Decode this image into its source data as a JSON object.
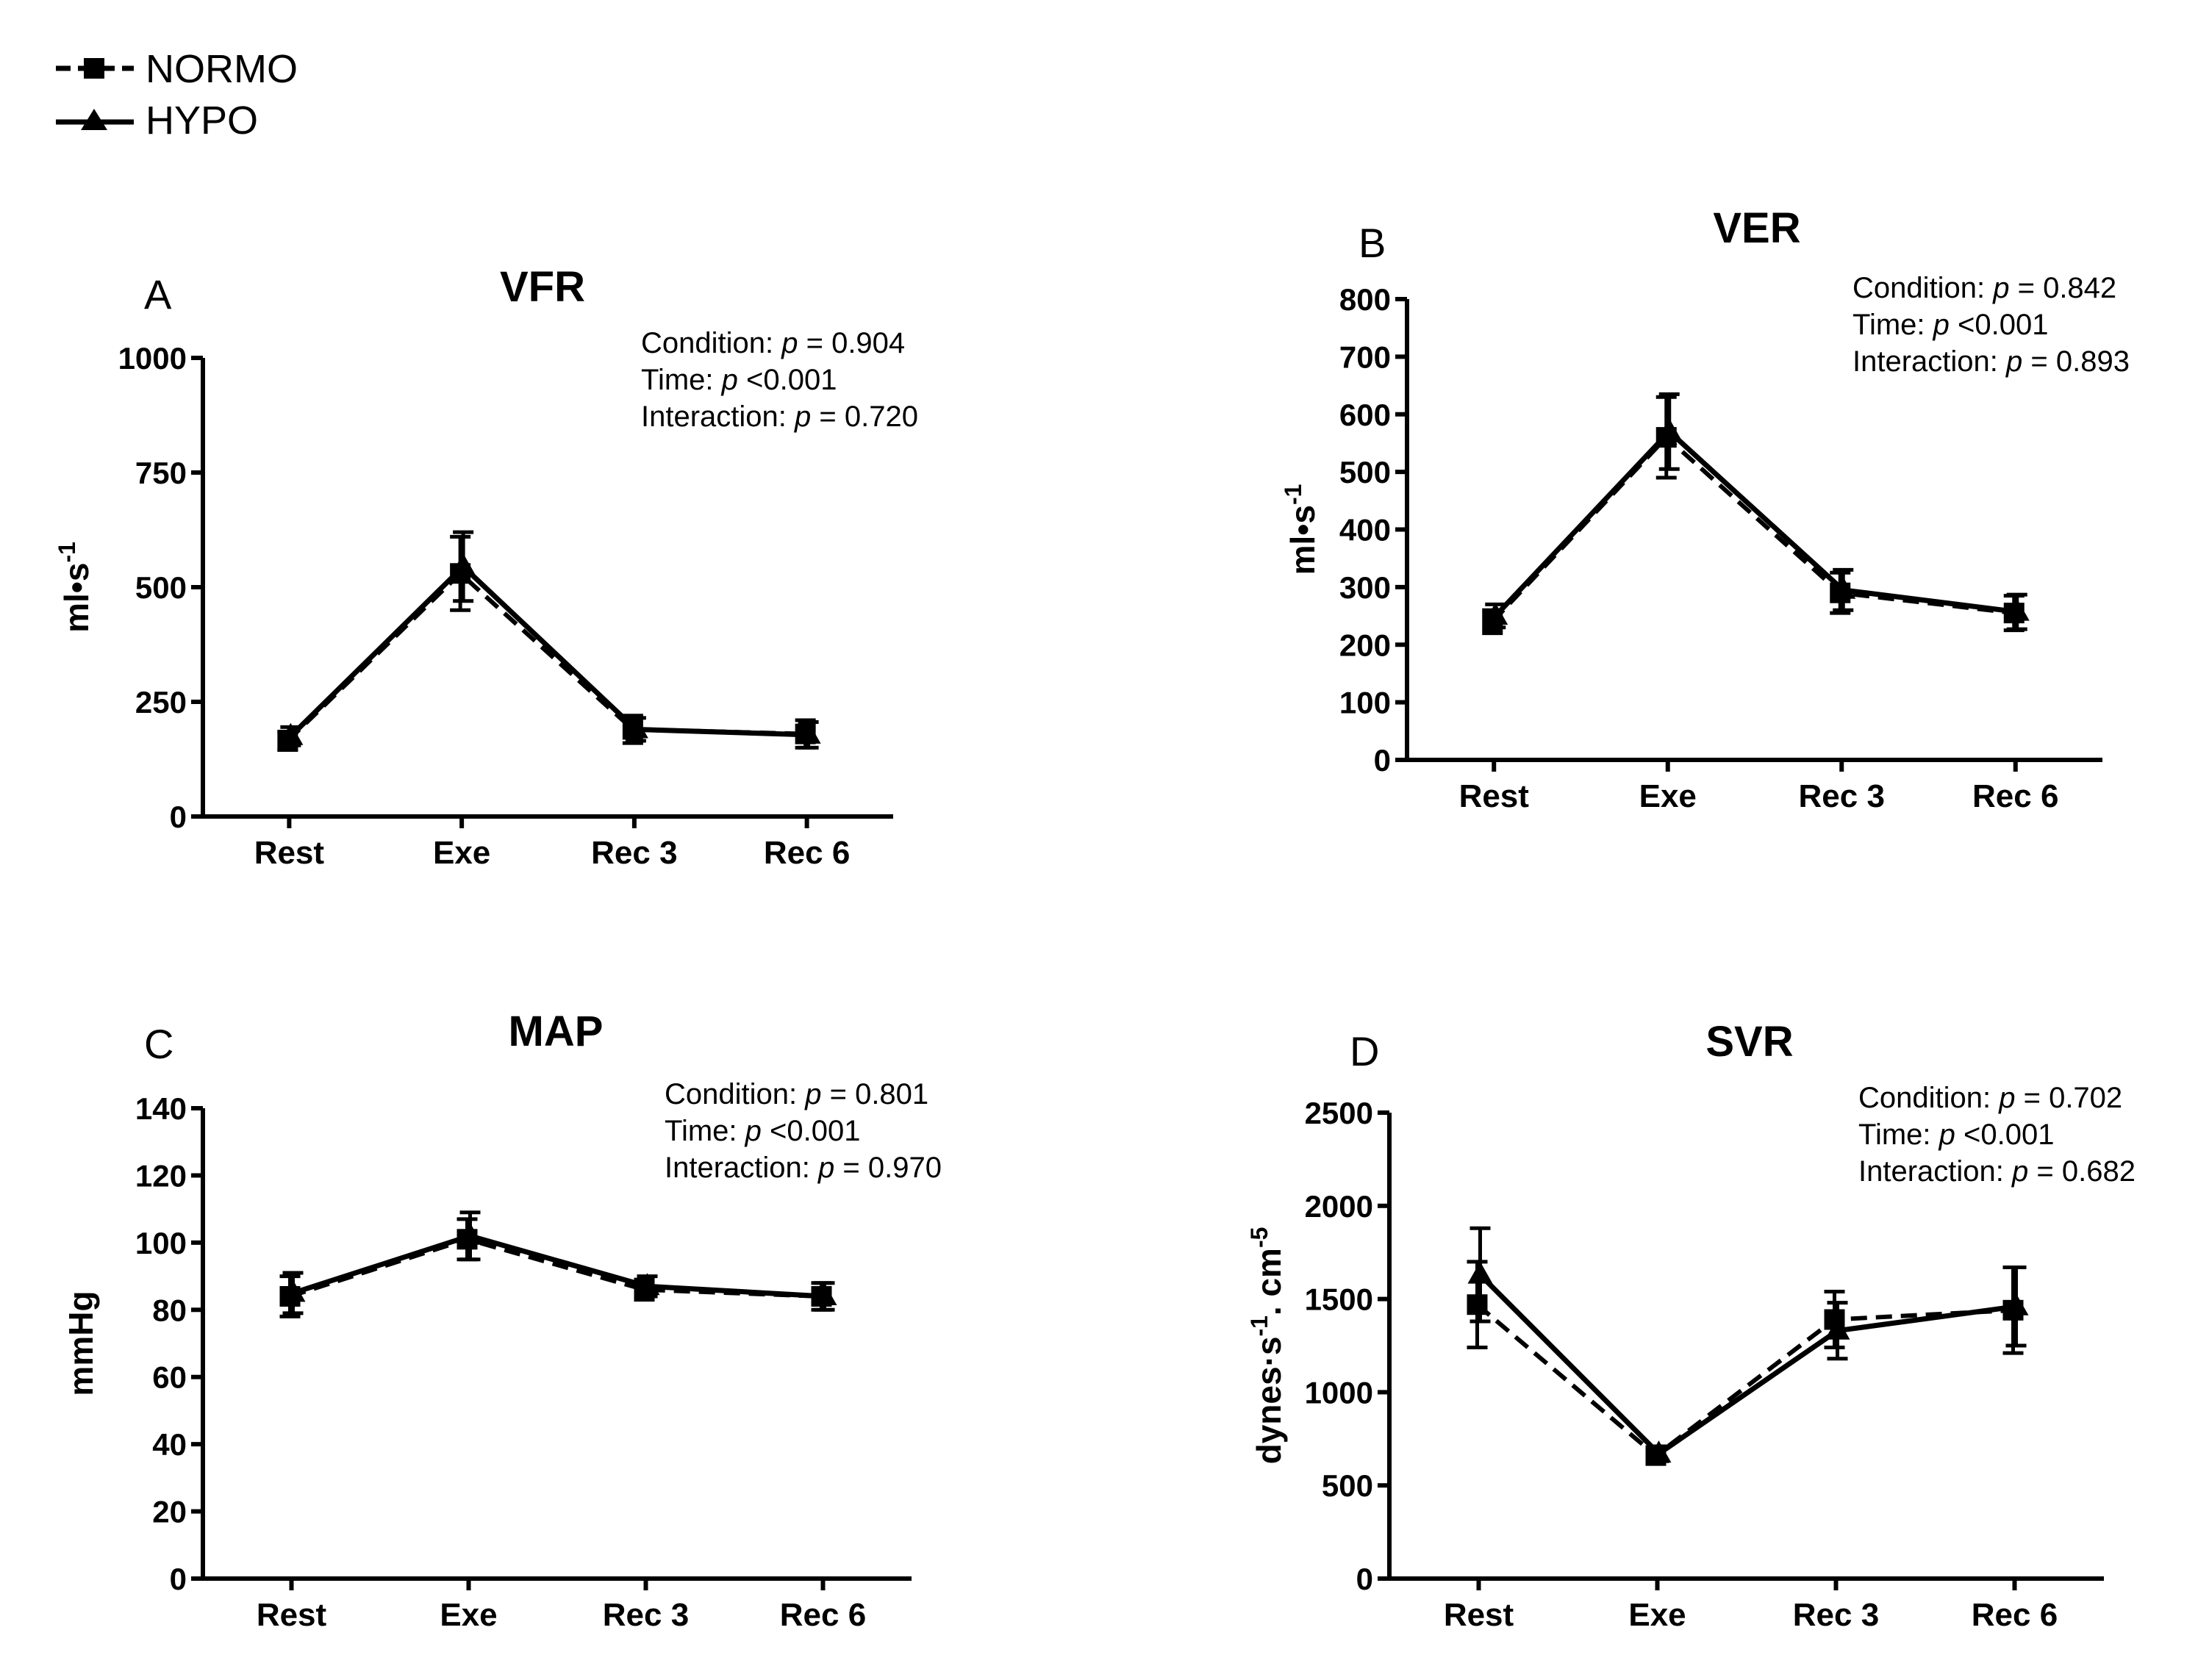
{
  "legend": {
    "items": [
      {
        "label": "NORMO",
        "line_style": "dashed",
        "marker": "square"
      },
      {
        "label": "HYPO",
        "line_style": "solid",
        "marker": "triangle"
      }
    ]
  },
  "chart_data": [
    {
      "panel": "A",
      "type": "line",
      "title": "VFR",
      "ylabel": "ml•s",
      "ylabel_sup": "-1",
      "categories": [
        "Rest",
        "Exe",
        "Rec 3",
        "Rec 6"
      ],
      "ylim": [
        0,
        1000
      ],
      "yticks": [
        0,
        250,
        500,
        750,
        1000
      ],
      "series": [
        {
          "name": "NORMO",
          "values": [
            165,
            530,
            190,
            180
          ],
          "errors": [
            20,
            80,
            30,
            30
          ]
        },
        {
          "name": "HYPO",
          "values": [
            175,
            545,
            190,
            178
          ],
          "errors": [
            20,
            75,
            25,
            28
          ]
        }
      ],
      "stats": [
        {
          "label": "Condition:",
          "p": "p",
          "rest": " = 0.904"
        },
        {
          "label": "Time:",
          "p": "p",
          "rest": " <0.001"
        },
        {
          "label": "Interaction:",
          "p": "p",
          "rest": " = 0.720"
        }
      ]
    },
    {
      "panel": "B",
      "type": "line",
      "title": "VER",
      "ylabel": "ml•s",
      "ylabel_sup": "-1",
      "categories": [
        "Rest",
        "Exe",
        "Rec 3",
        "Rec 6"
      ],
      "ylim": [
        0,
        800
      ],
      "yticks": [
        0,
        100,
        200,
        300,
        400,
        500,
        600,
        700,
        800
      ],
      "series": [
        {
          "name": "NORMO",
          "values": [
            240,
            560,
            290,
            255
          ],
          "errors": [
            20,
            70,
            35,
            30
          ]
        },
        {
          "name": "HYPO",
          "values": [
            250,
            570,
            295,
            257
          ],
          "errors": [
            20,
            65,
            35,
            30
          ]
        }
      ],
      "stats": [
        {
          "label": "Condition:",
          "p": "p",
          "rest": " = 0.842"
        },
        {
          "label": "Time:",
          "p": "p",
          "rest": " <0.001"
        },
        {
          "label": "Interaction:",
          "p": "p",
          "rest": " = 0.893"
        }
      ]
    },
    {
      "panel": "C",
      "type": "line",
      "title": "MAP",
      "ylabel": "mmHg",
      "ylabel_sup": "",
      "categories": [
        "Rest",
        "Exe",
        "Rec 3",
        "Rec 6"
      ],
      "ylim": [
        0,
        140
      ],
      "yticks": [
        0,
        20,
        40,
        60,
        80,
        100,
        120,
        140
      ],
      "series": [
        {
          "name": "NORMO",
          "values": [
            84,
            101,
            86,
            84
          ],
          "errors": [
            6,
            6,
            3,
            4
          ]
        },
        {
          "name": "HYPO",
          "values": [
            85,
            102,
            87,
            84
          ],
          "errors": [
            6,
            7,
            3,
            4
          ]
        }
      ],
      "stats": [
        {
          "label": "Condition:",
          "p": "p",
          "rest": " = 0.801"
        },
        {
          "label": "Time:",
          "p": "p",
          "rest": " <0.001"
        },
        {
          "label": "Interaction:",
          "p": "p",
          "rest": " = 0.970"
        }
      ]
    },
    {
      "panel": "D",
      "type": "line",
      "title": "SVR",
      "ylabel": "dynes·s",
      "ylabel_sup": "-1",
      "ylabel_tail": ". cm",
      "ylabel_sup2": "-5",
      "categories": [
        "Rest",
        "Exe",
        "Rec 3",
        "Rec 6"
      ],
      "ylim": [
        0,
        2500
      ],
      "yticks": [
        0,
        500,
        1000,
        1500,
        2000,
        2500
      ],
      "series": [
        {
          "name": "NORMO",
          "values": [
            1470,
            660,
            1390,
            1440
          ],
          "errors": [
            230,
            40,
            150,
            230
          ]
        },
        {
          "name": "HYPO",
          "values": [
            1630,
            670,
            1330,
            1460
          ],
          "errors": [
            250,
            40,
            150,
            210
          ]
        }
      ],
      "stats": [
        {
          "label": "Condition:",
          "p": "p",
          "rest": " = 0.702"
        },
        {
          "label": "Time:",
          "p": "p",
          "rest": " <0.001"
        },
        {
          "label": "Interaction:",
          "p": "p",
          "rest": " = 0.682"
        }
      ]
    }
  ]
}
